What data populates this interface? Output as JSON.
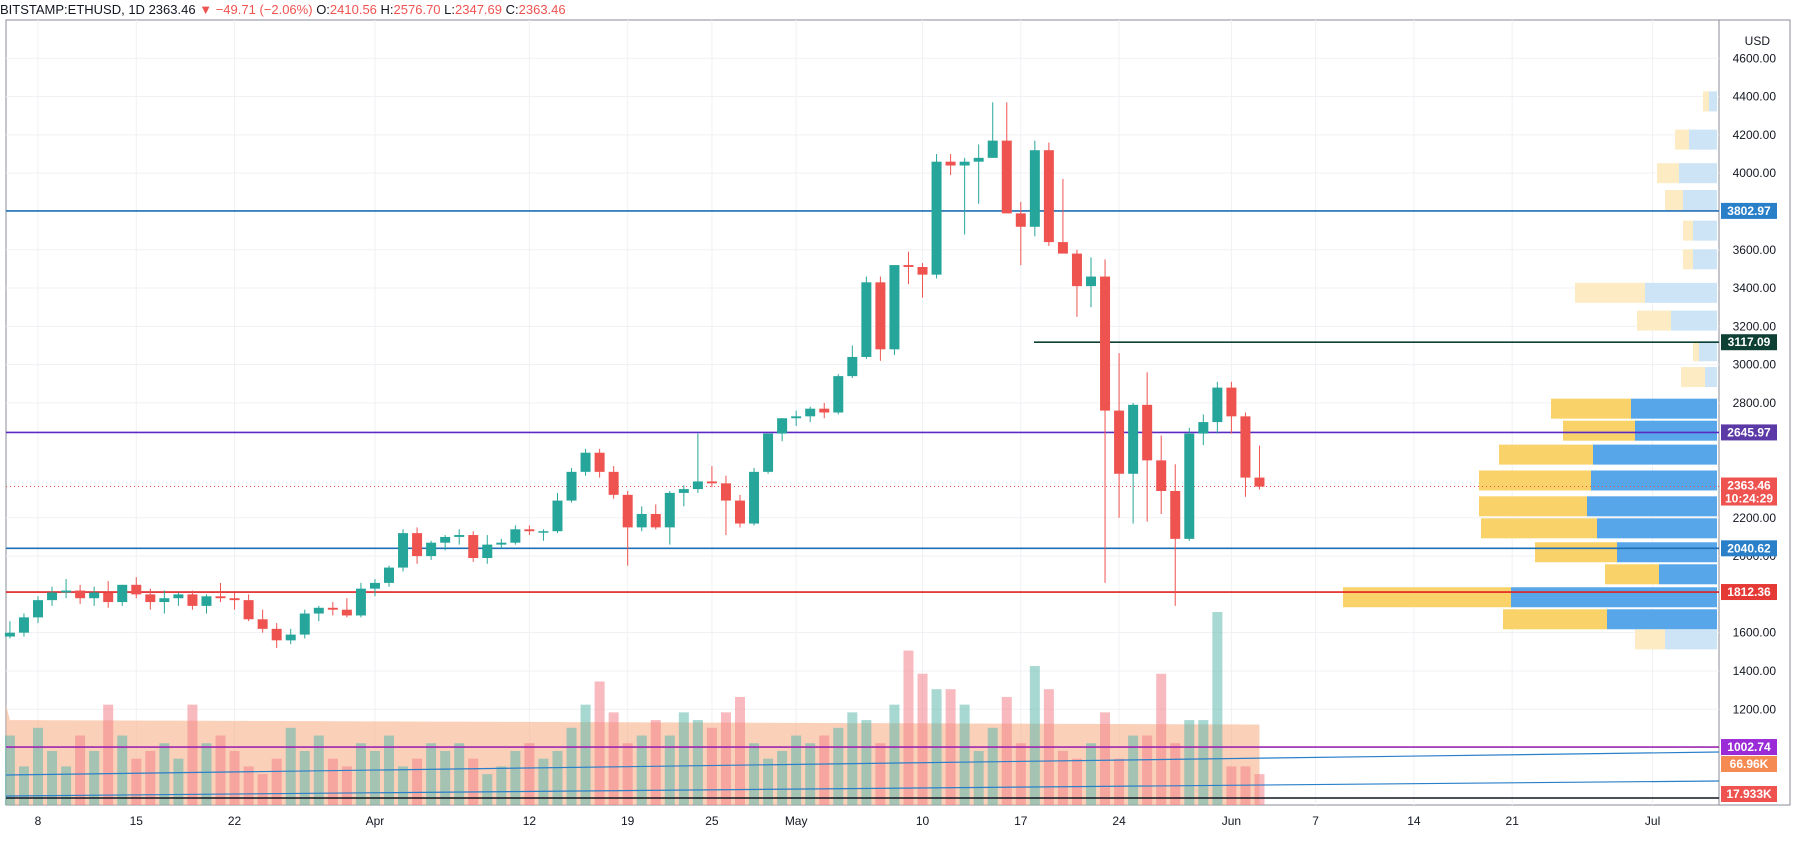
{
  "header": {
    "symbol": "BITSTAMP:ETHUSD, 1D",
    "last": "2363.46",
    "change": "−49.71 (−2.06%)",
    "o_label": "O:",
    "o": "2410.56",
    "h_label": "H:",
    "h": "2576.70",
    "l_label": "L:",
    "l": "2347.69",
    "c_label": "C:",
    "c": "2363.46"
  },
  "currency": "USD",
  "chart_data": {
    "type": "candlestick",
    "y_range": [
      700,
      4800
    ],
    "y_ticks": [
      "4600.00",
      "4400.00",
      "4200.00",
      "4000.00",
      "3600.00",
      "3400.00",
      "3200.00",
      "3000.00",
      "2800.00",
      "2200.00",
      "2000.00",
      "1600.00",
      "1400.00",
      "1200.00"
    ],
    "y_tick_values": [
      4600,
      4400,
      4200,
      4000,
      3600,
      3400,
      3200,
      3000,
      2800,
      2200,
      2000,
      1600,
      1400,
      1200
    ],
    "x_labels": [
      "8",
      "15",
      "22",
      "Apr",
      "12",
      "19",
      "25",
      "May",
      "10",
      "17",
      "24",
      "Jun",
      "7",
      "14",
      "21",
      "Jul"
    ],
    "x_label_days": [
      8,
      15,
      22,
      32,
      43,
      50,
      56,
      62,
      71,
      78,
      85,
      93,
      99,
      106,
      113,
      123
    ],
    "first_day": 6,
    "candles": [
      [
        1580,
        1660,
        1570,
        1600
      ],
      [
        1600,
        1700,
        1580,
        1680
      ],
      [
        1680,
        1790,
        1650,
        1770
      ],
      [
        1770,
        1840,
        1740,
        1810
      ],
      [
        1810,
        1880,
        1780,
        1820
      ],
      [
        1820,
        1850,
        1750,
        1780
      ],
      [
        1780,
        1840,
        1740,
        1810
      ],
      [
        1810,
        1870,
        1730,
        1760
      ],
      [
        1760,
        1850,
        1740,
        1850
      ],
      [
        1850,
        1890,
        1780,
        1800
      ],
      [
        1800,
        1830,
        1720,
        1760
      ],
      [
        1760,
        1820,
        1700,
        1780
      ],
      [
        1780,
        1810,
        1740,
        1800
      ],
      [
        1800,
        1820,
        1720,
        1740
      ],
      [
        1740,
        1800,
        1700,
        1790
      ],
      [
        1790,
        1860,
        1760,
        1780
      ],
      [
        1780,
        1810,
        1720,
        1770
      ],
      [
        1770,
        1800,
        1660,
        1670
      ],
      [
        1670,
        1720,
        1600,
        1620
      ],
      [
        1620,
        1650,
        1520,
        1560
      ],
      [
        1560,
        1620,
        1540,
        1590
      ],
      [
        1590,
        1720,
        1570,
        1700
      ],
      [
        1700,
        1740,
        1660,
        1730
      ],
      [
        1730,
        1760,
        1690,
        1720
      ],
      [
        1720,
        1780,
        1680,
        1690
      ],
      [
        1690,
        1860,
        1680,
        1830
      ],
      [
        1830,
        1880,
        1790,
        1860
      ],
      [
        1860,
        1950,
        1840,
        1940
      ],
      [
        1940,
        2140,
        1920,
        2120
      ],
      [
        2120,
        2150,
        1960,
        2000
      ],
      [
        2000,
        2080,
        1980,
        2070
      ],
      [
        2070,
        2110,
        2030,
        2100
      ],
      [
        2100,
        2140,
        2060,
        2110
      ],
      [
        2110,
        2130,
        1970,
        1990
      ],
      [
        1990,
        2110,
        1960,
        2060
      ],
      [
        2060,
        2090,
        2040,
        2070
      ],
      [
        2070,
        2160,
        2060,
        2140
      ],
      [
        2140,
        2160,
        2110,
        2130
      ],
      [
        2130,
        2140,
        2080,
        2130
      ],
      [
        2130,
        2330,
        2120,
        2290
      ],
      [
        2290,
        2460,
        2280,
        2440
      ],
      [
        2440,
        2560,
        2420,
        2540
      ],
      [
        2540,
        2560,
        2410,
        2440
      ],
      [
        2440,
        2470,
        2300,
        2320
      ],
      [
        2320,
        2340,
        1950,
        2150
      ],
      [
        2150,
        2260,
        2130,
        2220
      ],
      [
        2220,
        2270,
        2140,
        2150
      ],
      [
        2150,
        2340,
        2060,
        2330
      ],
      [
        2330,
        2370,
        2260,
        2350
      ],
      [
        2350,
        2640,
        2330,
        2390
      ],
      [
        2390,
        2470,
        2360,
        2380
      ],
      [
        2380,
        2420,
        2110,
        2290
      ],
      [
        2290,
        2320,
        2150,
        2170
      ],
      [
        2170,
        2460,
        2160,
        2440
      ],
      [
        2440,
        2610,
        2430,
        2640
      ],
      [
        2640,
        2720,
        2600,
        2720
      ],
      [
        2720,
        2760,
        2680,
        2730
      ],
      [
        2730,
        2780,
        2700,
        2770
      ],
      [
        2770,
        2800,
        2720,
        2750
      ],
      [
        2750,
        2950,
        2740,
        2940
      ],
      [
        2940,
        3100,
        2930,
        3040
      ],
      [
        3040,
        3460,
        3030,
        3430
      ],
      [
        3430,
        3460,
        3020,
        3080
      ],
      [
        3080,
        3520,
        3050,
        3520
      ],
      [
        3520,
        3590,
        3420,
        3510
      ],
      [
        3510,
        3530,
        3350,
        3470
      ],
      [
        3470,
        4100,
        3450,
        4060
      ],
      [
        4060,
        4100,
        3990,
        4040
      ],
      [
        4040,
        4080,
        3680,
        4060
      ],
      [
        4060,
        4150,
        3840,
        4080
      ],
      [
        4080,
        4370,
        4080,
        4170
      ],
      [
        4170,
        4370,
        3800,
        3790
      ],
      [
        3790,
        3850,
        3520,
        3720
      ],
      [
        3720,
        4170,
        3670,
        4120
      ],
      [
        4120,
        4160,
        3620,
        3640
      ],
      [
        3640,
        3970,
        3610,
        3580
      ],
      [
        3580,
        3600,
        3250,
        3410
      ],
      [
        3410,
        3560,
        3300,
        3460
      ],
      [
        3460,
        3550,
        1860,
        2760
      ],
      [
        2760,
        3060,
        2200,
        2430
      ],
      [
        2430,
        2800,
        2170,
        2790
      ],
      [
        2790,
        2960,
        2180,
        2500
      ],
      [
        2500,
        2630,
        2220,
        2340
      ],
      [
        2340,
        2480,
        1740,
        2090
      ],
      [
        2090,
        2670,
        2080,
        2640
      ],
      [
        2640,
        2740,
        2580,
        2700
      ],
      [
        2700,
        2910,
        2640,
        2880
      ],
      [
        2880,
        2910,
        2640,
        2730
      ],
      [
        2730,
        2750,
        2310,
        2410
      ],
      [
        2410,
        2577,
        2348,
        2363
      ]
    ],
    "volumes": [
      9,
      5,
      10,
      7,
      5,
      9,
      7,
      13,
      9,
      6,
      7,
      8,
      6,
      13,
      8,
      9,
      7,
      5,
      4,
      6,
      10,
      7,
      9,
      6,
      5,
      8,
      7,
      9,
      5,
      6,
      8,
      7,
      8,
      6,
      4,
      5,
      7,
      8,
      6,
      7,
      10,
      13,
      16,
      12,
      8,
      9,
      11,
      9,
      12,
      11,
      10,
      12,
      14,
      8,
      6,
      7,
      9,
      8,
      9,
      10,
      12,
      11,
      8,
      13,
      20,
      17,
      15,
      15,
      13,
      7,
      10,
      14,
      8,
      18,
      15,
      7,
      6,
      8,
      12,
      6,
      9,
      9,
      17,
      8,
      11,
      11,
      25,
      5,
      5,
      4
    ]
  },
  "price_levels": [
    {
      "label": "3802.97",
      "value": 3802.97,
      "color": "#1e6fb4",
      "tag": "#2a7fc9"
    },
    {
      "label": "3117.09",
      "value": 3117.09,
      "color": "#0f4034",
      "tag": "#0f4034"
    },
    {
      "label": "2645.97",
      "value": 2645.97,
      "color": "#5a2bc4",
      "tag": "#5b3aa8"
    },
    {
      "label": "2040.62",
      "value": 2040.62,
      "color": "#1e6fb4",
      "tag": "#2a7fc9"
    },
    {
      "label": "1812.36",
      "value": 1812.36,
      "color": "#e02020",
      "tag": "#e53935"
    },
    {
      "label": "1002.74",
      "value": 1002.74,
      "color": "#9c27b0",
      "tag": "#9a2bd6"
    }
  ],
  "current_price": {
    "label": "2363.46",
    "countdown": "10:24:29"
  },
  "volume_tags": [
    {
      "label": "66.96K"
    },
    {
      "label": "17.933K"
    }
  ],
  "volume_profile": [
    {
      "y": 4375,
      "buy": 6,
      "sell": 8
    },
    {
      "y": 4175,
      "buy": 14,
      "sell": 28
    },
    {
      "y": 4000,
      "buy": 22,
      "sell": 38
    },
    {
      "y": 3860,
      "buy": 18,
      "sell": 34
    },
    {
      "y": 3700,
      "buy": 10,
      "sell": 24
    },
    {
      "y": 3550,
      "buy": 10,
      "sell": 24
    },
    {
      "y": 3375,
      "buy": 70,
      "sell": 72
    },
    {
      "y": 3230,
      "buy": 34,
      "sell": 46
    },
    {
      "y": 3070,
      "buy": 6,
      "sell": 18
    },
    {
      "y": 2935,
      "buy": 24,
      "sell": 12
    },
    {
      "y": 2770,
      "buy": 80,
      "sell": 86
    },
    {
      "y": 2655,
      "buy": 72,
      "sell": 82
    },
    {
      "y": 2530,
      "buy": 94,
      "sell": 124
    },
    {
      "y": 2395,
      "buy": 112,
      "sell": 126
    },
    {
      "y": 2260,
      "buy": 108,
      "sell": 130
    },
    {
      "y": 2145,
      "buy": 116,
      "sell": 120
    },
    {
      "y": 2020,
      "buy": 82,
      "sell": 100
    },
    {
      "y": 1905,
      "buy": 54,
      "sell": 58
    },
    {
      "y": 1785,
      "buy": 168,
      "sell": 206
    },
    {
      "y": 1670,
      "buy": 104,
      "sell": 110
    },
    {
      "y": 1565,
      "buy": 30,
      "sell": 52
    }
  ]
}
